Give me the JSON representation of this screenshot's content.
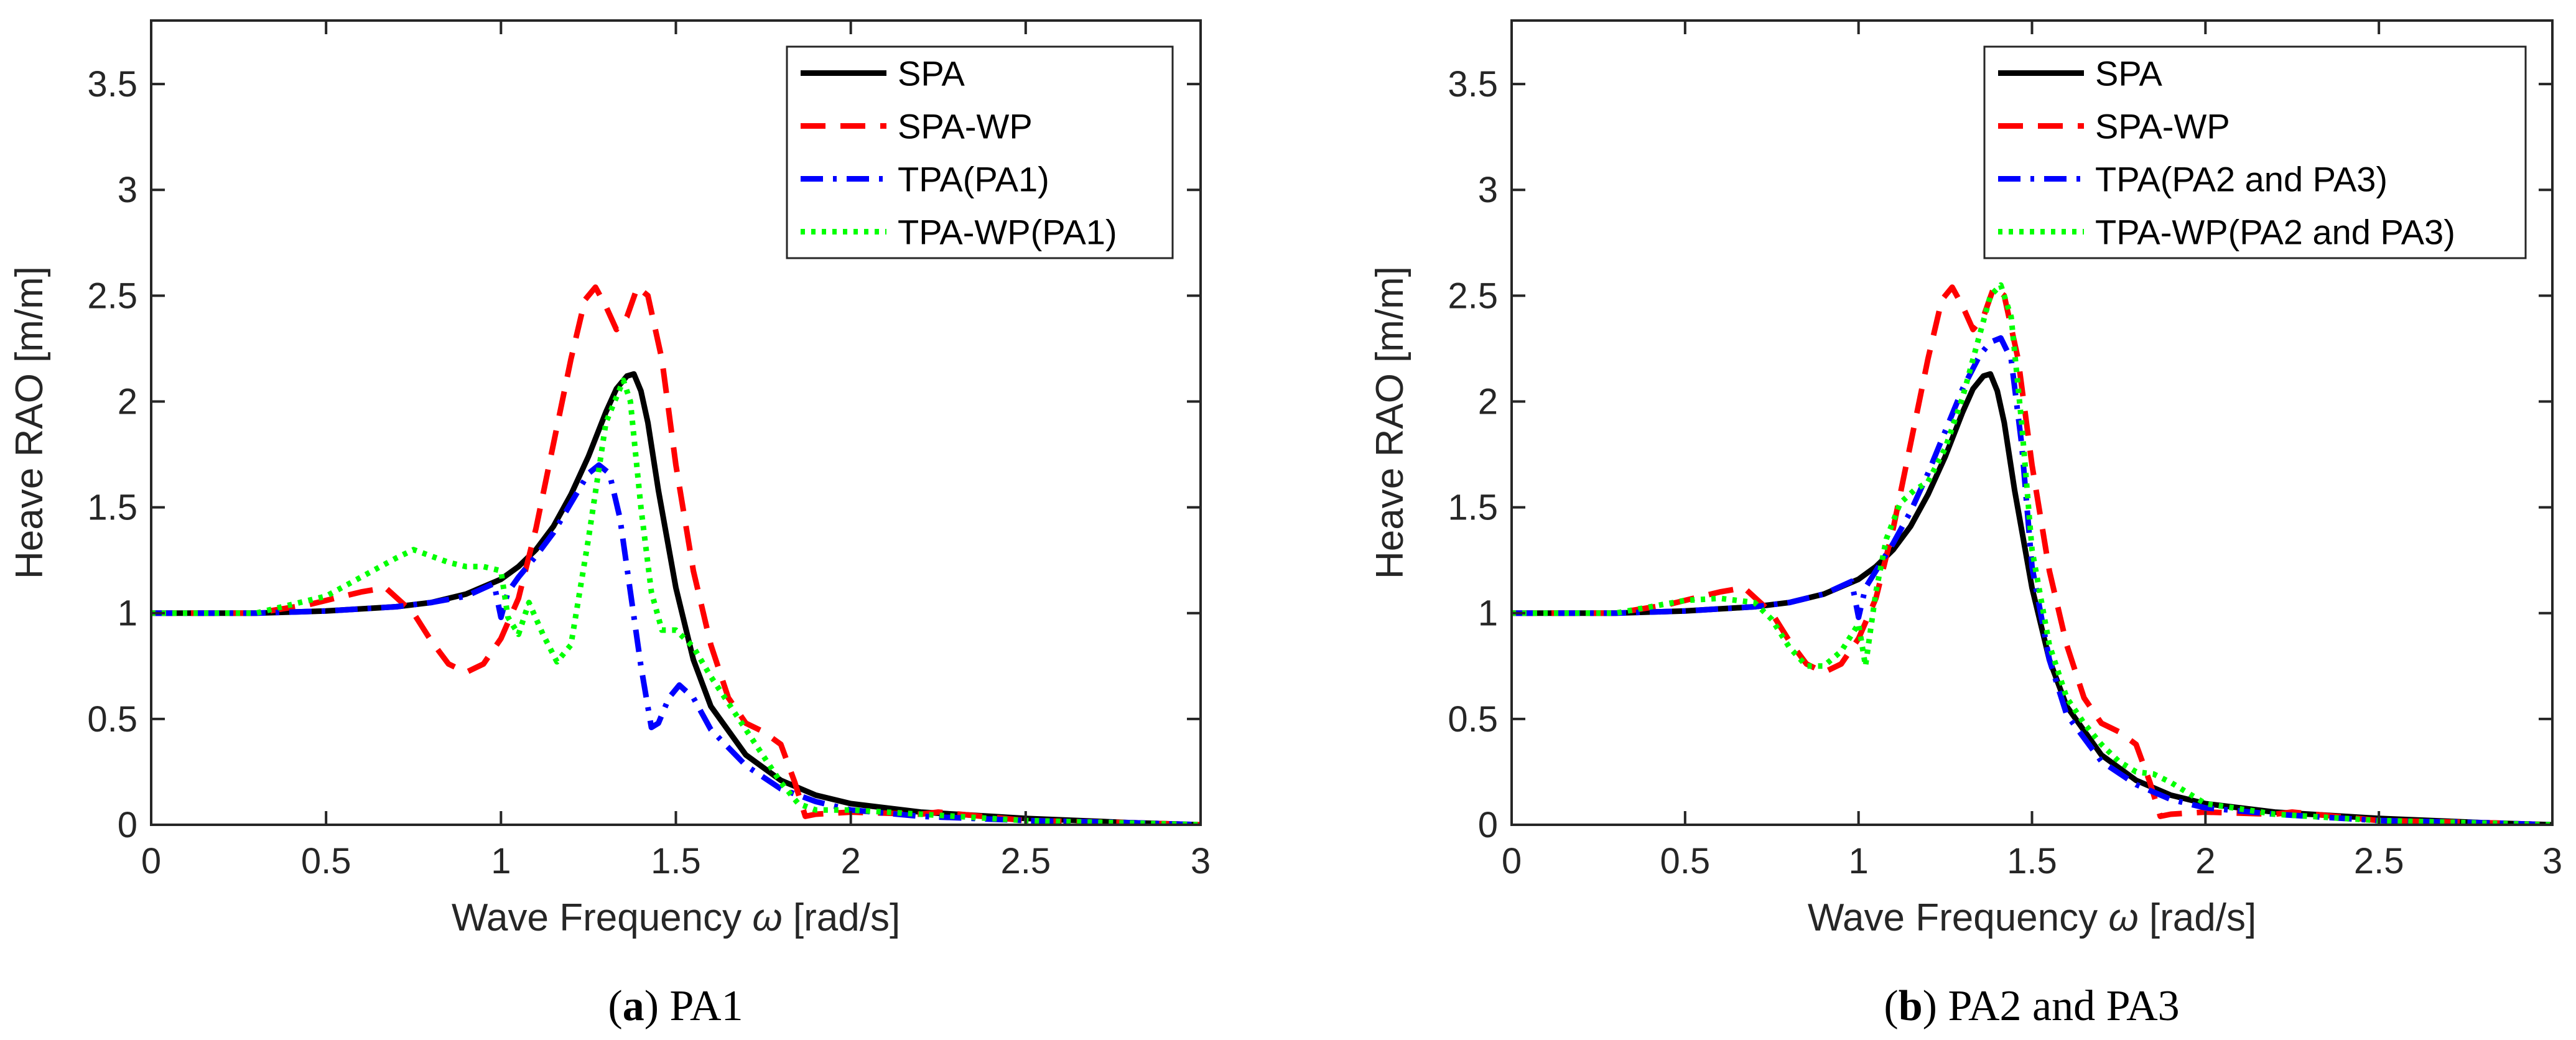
{
  "chart_data": [
    {
      "type": "line",
      "panel": "a",
      "caption_letter": "a",
      "caption_text": "PA1",
      "xlabel_prefix": "Wave Frequency ",
      "xlabel_symbol": "ω",
      "xlabel_suffix": " [rad/s]",
      "ylabel": "Heave RAO [m/m]",
      "xlim": [
        0,
        3
      ],
      "ylim": [
        0,
        3.8
      ],
      "xticks": [
        0,
        0.5,
        1,
        1.5,
        2,
        2.5,
        3
      ],
      "xtick_labels": [
        "0",
        "0.5",
        "1",
        "1.5",
        "2",
        "2.5",
        "3"
      ],
      "yticks": [
        0,
        0.5,
        1,
        1.5,
        2,
        2.5,
        3,
        3.5
      ],
      "ytick_labels": [
        "0",
        "0.5",
        "1",
        "1.5",
        "2",
        "2.5",
        "3",
        "3.5"
      ],
      "grid": false,
      "legend_position": "top-right",
      "series": [
        {
          "name": "SPA",
          "color": "#000000",
          "style": "solid",
          "x": [
            0,
            0.3,
            0.5,
            0.7,
            0.8,
            0.9,
            1.0,
            1.05,
            1.1,
            1.15,
            1.2,
            1.25,
            1.3,
            1.33,
            1.36,
            1.38,
            1.4,
            1.42,
            1.45,
            1.5,
            1.55,
            1.6,
            1.7,
            1.8,
            1.9,
            2.0,
            2.2,
            2.5,
            2.8,
            3.0
          ],
          "y": [
            1.0,
            1.0,
            1.01,
            1.03,
            1.05,
            1.09,
            1.16,
            1.22,
            1.3,
            1.41,
            1.56,
            1.74,
            1.95,
            2.06,
            2.12,
            2.13,
            2.05,
            1.9,
            1.58,
            1.12,
            0.78,
            0.56,
            0.33,
            0.21,
            0.14,
            0.1,
            0.06,
            0.03,
            0.01,
            0.0
          ]
        },
        {
          "name": "SPA-WP",
          "color": "#ff0000",
          "style": "dashed",
          "x": [
            0,
            0.3,
            0.45,
            0.6,
            0.67,
            0.75,
            0.8,
            0.85,
            0.9,
            0.95,
            1.0,
            1.05,
            1.1,
            1.15,
            1.2,
            1.24,
            1.27,
            1.3,
            1.33,
            1.36,
            1.39,
            1.42,
            1.46,
            1.5,
            1.55,
            1.6,
            1.65,
            1.7,
            1.75,
            1.8,
            1.84,
            1.87,
            1.9,
            2.0,
            2.2,
            2.25,
            2.5,
            2.8,
            3.0
          ],
          "y": [
            1.0,
            1.0,
            1.04,
            1.1,
            1.12,
            1.0,
            0.87,
            0.76,
            0.72,
            0.76,
            0.88,
            1.07,
            1.4,
            1.8,
            2.2,
            2.48,
            2.54,
            2.45,
            2.34,
            2.4,
            2.54,
            2.5,
            2.2,
            1.7,
            1.2,
            0.85,
            0.6,
            0.48,
            0.44,
            0.38,
            0.2,
            0.04,
            0.05,
            0.06,
            0.05,
            0.06,
            0.02,
            0.01,
            0.0
          ]
        },
        {
          "name": "TPA(PA1)",
          "color": "#0000ff",
          "style": "dashdot",
          "x": [
            0,
            0.3,
            0.5,
            0.7,
            0.8,
            0.9,
            0.98,
            1.0,
            1.02,
            1.05,
            1.1,
            1.15,
            1.2,
            1.25,
            1.28,
            1.31,
            1.34,
            1.37,
            1.4,
            1.43,
            1.45,
            1.48,
            1.51,
            1.55,
            1.6,
            1.7,
            1.8,
            1.9,
            2.0,
            2.2,
            2.5,
            2.8,
            3.0
          ],
          "y": [
            1.0,
            1.0,
            1.01,
            1.03,
            1.05,
            1.08,
            1.14,
            0.98,
            1.1,
            1.17,
            1.27,
            1.38,
            1.52,
            1.66,
            1.7,
            1.66,
            1.45,
            1.1,
            0.75,
            0.46,
            0.48,
            0.6,
            0.66,
            0.6,
            0.45,
            0.28,
            0.17,
            0.11,
            0.07,
            0.04,
            0.02,
            0.01,
            0.0
          ]
        },
        {
          "name": "TPA-WP(PA1)",
          "color": "#00ff00",
          "style": "dotted",
          "x": [
            0,
            0.3,
            0.4,
            0.5,
            0.6,
            0.7,
            0.75,
            0.8,
            0.85,
            0.9,
            0.95,
            1.0,
            1.02,
            1.05,
            1.08,
            1.12,
            1.16,
            1.2,
            1.25,
            1.3,
            1.35,
            1.37,
            1.4,
            1.43,
            1.46,
            1.5,
            1.55,
            1.6,
            1.7,
            1.8,
            1.85,
            1.9,
            2.0,
            2.2,
            2.5,
            3.0
          ],
          "y": [
            1.0,
            1.0,
            1.04,
            1.08,
            1.17,
            1.26,
            1.3,
            1.27,
            1.24,
            1.22,
            1.22,
            1.2,
            0.98,
            0.9,
            1.05,
            0.9,
            0.77,
            0.85,
            1.35,
            1.9,
            2.1,
            2.0,
            1.5,
            1.1,
            0.92,
            0.92,
            0.84,
            0.7,
            0.45,
            0.2,
            0.1,
            0.07,
            0.07,
            0.05,
            0.02,
            0.0
          ]
        }
      ]
    },
    {
      "type": "line",
      "panel": "b",
      "caption_letter": "b",
      "caption_text": "PA2 and PA3",
      "xlabel_prefix": "Wave Frequency ",
      "xlabel_symbol": "ω",
      "xlabel_suffix": " [rad/s]",
      "ylabel": "Heave RAO [m/m]",
      "xlim": [
        0,
        3
      ],
      "ylim": [
        0,
        3.8
      ],
      "xticks": [
        0,
        0.5,
        1,
        1.5,
        2,
        2.5,
        3
      ],
      "xtick_labels": [
        "0",
        "0.5",
        "1",
        "1.5",
        "2",
        "2.5",
        "3"
      ],
      "yticks": [
        0,
        0.5,
        1,
        1.5,
        2,
        2.5,
        3,
        3.5
      ],
      "ytick_labels": [
        "0",
        "0.5",
        "1",
        "1.5",
        "2",
        "2.5",
        "3",
        "3.5"
      ],
      "grid": false,
      "legend_position": "top-right",
      "series": [
        {
          "name": "SPA",
          "color": "#000000",
          "style": "solid",
          "x": [
            0,
            0.3,
            0.5,
            0.7,
            0.8,
            0.9,
            1.0,
            1.05,
            1.1,
            1.15,
            1.2,
            1.25,
            1.3,
            1.33,
            1.36,
            1.38,
            1.4,
            1.42,
            1.45,
            1.5,
            1.55,
            1.6,
            1.7,
            1.8,
            1.9,
            2.0,
            2.2,
            2.5,
            2.8,
            3.0
          ],
          "y": [
            1.0,
            1.0,
            1.01,
            1.03,
            1.05,
            1.09,
            1.16,
            1.22,
            1.3,
            1.41,
            1.56,
            1.74,
            1.95,
            2.06,
            2.12,
            2.13,
            2.05,
            1.9,
            1.58,
            1.12,
            0.78,
            0.56,
            0.33,
            0.21,
            0.14,
            0.1,
            0.06,
            0.03,
            0.01,
            0.0
          ]
        },
        {
          "name": "SPA-WP",
          "color": "#ff0000",
          "style": "dashed",
          "x": [
            0,
            0.3,
            0.45,
            0.6,
            0.67,
            0.75,
            0.8,
            0.85,
            0.9,
            0.95,
            1.0,
            1.05,
            1.1,
            1.15,
            1.2,
            1.24,
            1.27,
            1.3,
            1.33,
            1.36,
            1.39,
            1.42,
            1.46,
            1.5,
            1.55,
            1.6,
            1.65,
            1.7,
            1.75,
            1.8,
            1.84,
            1.87,
            1.9,
            2.0,
            2.2,
            2.25,
            2.5,
            2.8,
            3.0
          ],
          "y": [
            1.0,
            1.0,
            1.04,
            1.1,
            1.12,
            1.0,
            0.87,
            0.76,
            0.72,
            0.76,
            0.88,
            1.07,
            1.4,
            1.8,
            2.2,
            2.48,
            2.54,
            2.45,
            2.34,
            2.4,
            2.54,
            2.5,
            2.2,
            1.7,
            1.2,
            0.85,
            0.6,
            0.48,
            0.44,
            0.38,
            0.2,
            0.04,
            0.05,
            0.06,
            0.05,
            0.06,
            0.02,
            0.01,
            0.0
          ]
        },
        {
          "name": "TPA(PA2 and PA3)",
          "color": "#0000ff",
          "style": "dashdot",
          "x": [
            0,
            0.3,
            0.5,
            0.7,
            0.8,
            0.9,
            0.98,
            1.0,
            1.02,
            1.05,
            1.1,
            1.15,
            1.2,
            1.25,
            1.3,
            1.35,
            1.38,
            1.41,
            1.44,
            1.47,
            1.5,
            1.55,
            1.6,
            1.7,
            1.8,
            1.9,
            2.0,
            2.2,
            2.5,
            2.8,
            3.0
          ],
          "y": [
            1.0,
            1.0,
            1.01,
            1.03,
            1.05,
            1.09,
            1.15,
            0.98,
            1.12,
            1.2,
            1.33,
            1.48,
            1.66,
            1.86,
            2.06,
            2.22,
            2.28,
            2.3,
            2.2,
            1.8,
            1.22,
            0.78,
            0.52,
            0.3,
            0.19,
            0.12,
            0.08,
            0.05,
            0.02,
            0.01,
            0.0
          ]
        },
        {
          "name": "TPA-WP(PA2 and PA3)",
          "color": "#00ff00",
          "style": "dotted",
          "x": [
            0,
            0.3,
            0.4,
            0.5,
            0.6,
            0.7,
            0.75,
            0.8,
            0.85,
            0.9,
            0.95,
            1.0,
            1.02,
            1.05,
            1.08,
            1.12,
            1.16,
            1.2,
            1.25,
            1.3,
            1.35,
            1.38,
            1.41,
            1.44,
            1.47,
            1.5,
            1.55,
            1.6,
            1.65,
            1.7,
            1.75,
            1.8,
            1.85,
            1.9,
            2.0,
            2.2,
            2.5,
            3.0
          ],
          "y": [
            1.0,
            1.0,
            1.03,
            1.06,
            1.07,
            1.05,
            0.97,
            0.84,
            0.75,
            0.75,
            0.82,
            0.95,
            0.75,
            1.1,
            1.35,
            1.52,
            1.58,
            1.62,
            1.78,
            2.02,
            2.32,
            2.5,
            2.55,
            2.4,
            1.9,
            1.3,
            0.85,
            0.6,
            0.48,
            0.38,
            0.3,
            0.25,
            0.24,
            0.2,
            0.1,
            0.05,
            0.02,
            0.0
          ]
        }
      ]
    }
  ]
}
